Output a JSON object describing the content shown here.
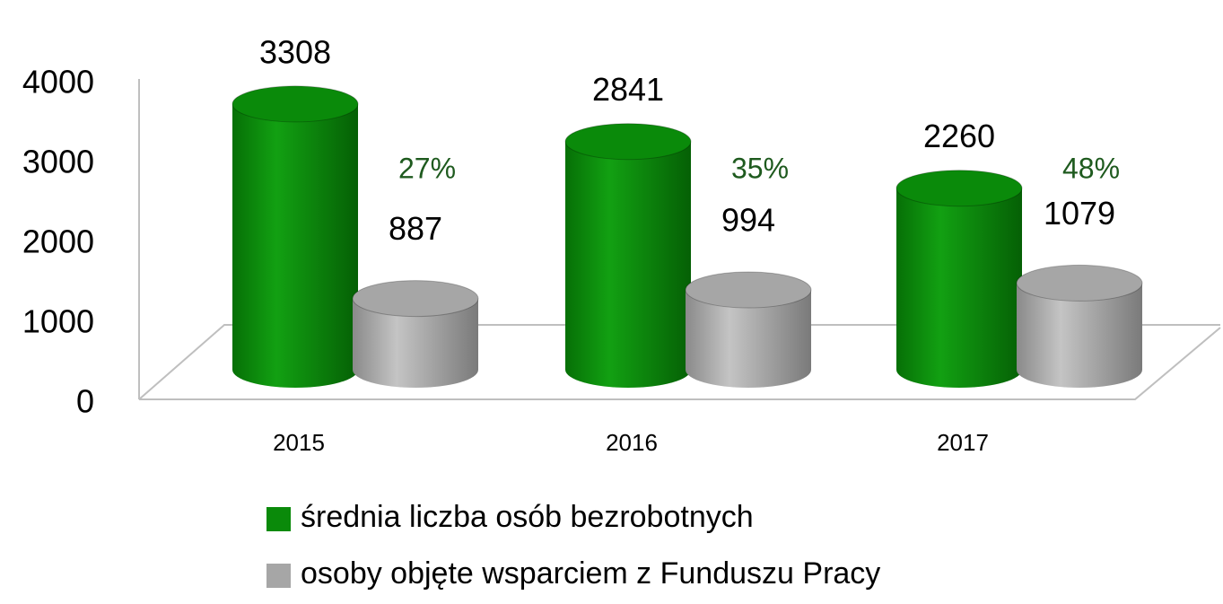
{
  "chart_data": {
    "type": "bar3d",
    "categories": [
      "2015",
      "2016",
      "2017"
    ],
    "series": [
      {
        "name": "średnia liczba osób bezrobotnych",
        "color": "#0a8a0a",
        "values": [
          3308,
          2841,
          2260
        ]
      },
      {
        "name": "osoby objęte wsparciem z Funduszu Pracy",
        "color": "#a6a6a6",
        "values": [
          887,
          994,
          1079
        ]
      }
    ],
    "annotations": [
      "27%",
      "35%",
      "48%"
    ],
    "annotation_color": "#1e5a1e",
    "ylim": [
      0,
      4000
    ],
    "yticks": [
      0,
      1000,
      2000,
      3000,
      4000
    ],
    "legend": "bottom"
  }
}
